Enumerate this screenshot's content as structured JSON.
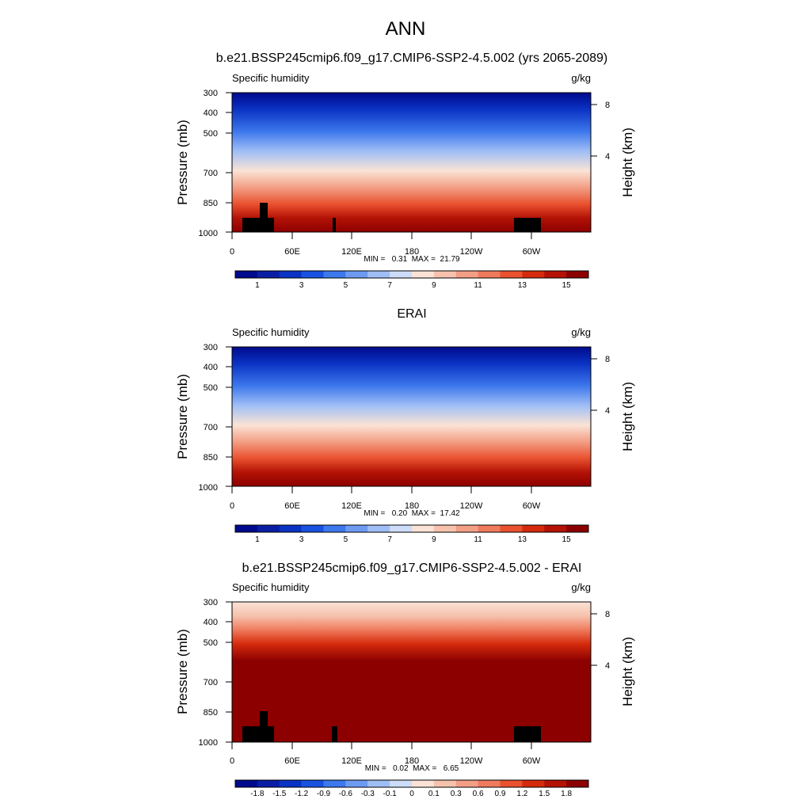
{
  "page_title": "ANN",
  "chart_data": [
    {
      "type": "contour",
      "title": "b.e21.BSSP245cmip6.f09_g17.CMIP6-SSP2-4.5.002 (yrs 2065-2089)",
      "left_label": "Specific humidity",
      "right_label": "g/kg",
      "ylabel": "Pressure (mb)",
      "y2label": "Height (km)",
      "y_ticks": [
        "300",
        "400",
        "500",
        "700",
        "850",
        "1000"
      ],
      "y2_ticks": [
        "8",
        "4"
      ],
      "x_ticks": [
        "0",
        "60E",
        "120E",
        "180",
        "120W",
        "60W"
      ],
      "stats": "MIN =   0.31  MAX =  21.79",
      "colorbar_ticks": [
        "1",
        "3",
        "5",
        "7",
        "9",
        "11",
        "13",
        "15"
      ],
      "colorbar_colors": [
        "#000a8c",
        "#0a1ea5",
        "#0a33c4",
        "#1952e0",
        "#3d78ec",
        "#6d9bf2",
        "#9fbef6",
        "#cddcf8",
        "#fae3d6",
        "#f6c2ad",
        "#f39f85",
        "#ef7a5c",
        "#e9512f",
        "#d52b0c",
        "#b31205",
        "#8c0000"
      ],
      "missing": [
        [
          10,
          15
        ],
        [
          15,
          25
        ],
        [
          13,
          25
        ],
        [
          5,
          25
        ],
        [
          8,
          70
        ],
        [
          2,
          15
        ],
        [
          5,
          25
        ]
      ]
    },
    {
      "type": "contour",
      "title": "ERAI",
      "left_label": "Specific humidity",
      "right_label": "g/kg",
      "ylabel": "Pressure (mb)",
      "y2label": "Height (km)",
      "y_ticks": [
        "300",
        "400",
        "500",
        "700",
        "850",
        "1000"
      ],
      "y2_ticks": [
        "8",
        "4"
      ],
      "x_ticks": [
        "0",
        "60E",
        "120E",
        "180",
        "120W",
        "60W"
      ],
      "stats": "MIN =   0.20  MAX =  17.42",
      "colorbar_ticks": [
        "1",
        "3",
        "5",
        "7",
        "9",
        "11",
        "13",
        "15"
      ],
      "colorbar_colors": [
        "#000a8c",
        "#0a1ea5",
        "#0a33c4",
        "#1952e0",
        "#3d78ec",
        "#6d9bf2",
        "#9fbef6",
        "#cddcf8",
        "#fae3d6",
        "#f6c2ad",
        "#f39f85",
        "#ef7a5c",
        "#e9512f",
        "#d52b0c",
        "#b31205",
        "#8c0000"
      ]
    },
    {
      "type": "contour",
      "title": "b.e21.BSSP245cmip6.f09_g17.CMIP6-SSP2-4.5.002 - ERAI",
      "left_label": "Specific humidity",
      "right_label": "g/kg",
      "ylabel": "Pressure (mb)",
      "y2label": "Height (km)",
      "y_ticks": [
        "300",
        "400",
        "500",
        "700",
        "850",
        "1000"
      ],
      "y2_ticks": [
        "8",
        "4"
      ],
      "x_ticks": [
        "0",
        "60E",
        "120E",
        "180",
        "120W",
        "60W"
      ],
      "stats": "MIN =   0.02  MAX =   6.65",
      "colorbar_ticks": [
        "-1.8",
        "-1.5",
        "-1.2",
        "-0.9",
        "-0.6",
        "-0.3",
        "-0.1",
        "0",
        "0.1",
        "0.3",
        "0.6",
        "0.9",
        "1.2",
        "1.5",
        "1.8"
      ],
      "colorbar_colors": [
        "#000a8c",
        "#0a1ea5",
        "#0a33c4",
        "#1952e0",
        "#3d78ec",
        "#6d9bf2",
        "#9fbef6",
        "#cddcf8",
        "#fae3d6",
        "#f6c2ad",
        "#f39f85",
        "#ef7a5c",
        "#e9512f",
        "#d52b0c",
        "#b31205",
        "#8c0000"
      ]
    }
  ]
}
